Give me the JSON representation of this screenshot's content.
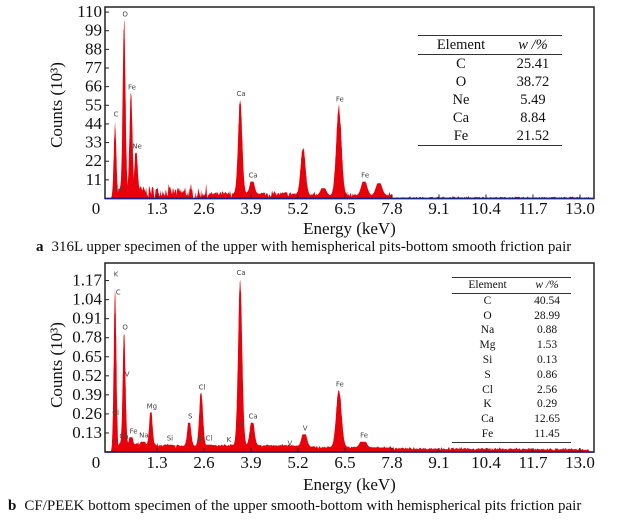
{
  "chart_data": [
    {
      "type": "area",
      "panel_label": "a",
      "caption": "316L upper specimen of the upper with hemispherical pits-bottom smooth friction pair",
      "xlabel": "Energy (keV)",
      "ylabel": "Counts (10³)",
      "xlim": [
        0,
        13.3
      ],
      "ylim": [
        0,
        113
      ],
      "xticks": [
        "0",
        "1.3",
        "2.6",
        "3.9",
        "5.2",
        "6.5",
        "7.8",
        "9.1",
        "10.4",
        "11.7",
        "13.0"
      ],
      "yticks": [
        "11",
        "22",
        "33",
        "44",
        "55",
        "66",
        "77",
        "88",
        "99",
        "110"
      ],
      "color": "#e8000b",
      "peaks": [
        {
          "energy": 0.14,
          "counts": 46,
          "label": "C"
        },
        {
          "energy": 0.39,
          "counts": 105,
          "label": "O"
        },
        {
          "energy": 0.58,
          "counts": 62,
          "label": "Fe"
        },
        {
          "energy": 0.72,
          "counts": 27,
          "label": "Ne"
        },
        {
          "energy": 3.6,
          "counts": 58,
          "label": "Ca"
        },
        {
          "energy": 3.93,
          "counts": 10,
          "label": "Ca"
        },
        {
          "energy": 5.34,
          "counts": 30,
          "label": ""
        },
        {
          "energy": 5.9,
          "counts": 6,
          "label": ""
        },
        {
          "energy": 6.33,
          "counts": 55,
          "label": "Fe"
        },
        {
          "energy": 7.03,
          "counts": 10,
          "label": "Fe"
        },
        {
          "energy": 7.44,
          "counts": 9,
          "label": ""
        }
      ],
      "extra_labels": [
        {
          "energy": 0.18,
          "counts": 3.5,
          "label": "Ca"
        }
      ],
      "table": {
        "headers": [
          "Element",
          "w /%"
        ],
        "rows": [
          [
            "C",
            "25.41"
          ],
          [
            "O",
            "38.72"
          ],
          [
            "Ne",
            "5.49"
          ],
          [
            "Ca",
            "8.84"
          ],
          [
            "Fe",
            "21.52"
          ]
        ]
      }
    },
    {
      "type": "area",
      "panel_label": "b",
      "caption": "CF/PEEK bottom specimen of the upper smooth-bottom with hemispherical pits friction pair",
      "xlabel": "Energy (keV)",
      "ylabel": "Counts (10³)",
      "xlim": [
        0,
        13.3
      ],
      "ylim": [
        0,
        1.29
      ],
      "xticks": [
        "0",
        "1.3",
        "2.6",
        "3.9",
        "5.2",
        "6.5",
        "7.8",
        "9.1",
        "10.4",
        "11.7",
        "13.0"
      ],
      "yticks": [
        "0.13",
        "0.26",
        "0.39",
        "0.52",
        "0.65",
        "0.78",
        "0.91",
        "1.04",
        "1.17"
      ],
      "color": "#e8000b",
      "peaks": [
        {
          "energy": 0.14,
          "counts": 1.17,
          "label": "K"
        },
        {
          "energy": 0.39,
          "counts": 0.81,
          "label": "O"
        },
        {
          "energy": 0.58,
          "counts": 0.1,
          "label": "Fe"
        },
        {
          "energy": 0.91,
          "counts": 0.07,
          "label": "Na"
        },
        {
          "energy": 1.13,
          "counts": 0.27,
          "label": "Mg"
        },
        {
          "energy": 1.63,
          "counts": 0.05,
          "label": "Si"
        },
        {
          "energy": 2.19,
          "counts": 0.2,
          "label": "S"
        },
        {
          "energy": 2.52,
          "counts": 0.4,
          "label": "Cl"
        },
        {
          "energy": 2.71,
          "counts": 0.05,
          "label": "Cl"
        },
        {
          "energy": 3.26,
          "counts": 0.04,
          "label": "K"
        },
        {
          "energy": 3.6,
          "counts": 1.18,
          "label": "Ca"
        },
        {
          "energy": 3.93,
          "counts": 0.2,
          "label": "Ca"
        },
        {
          "energy": 5.37,
          "counts": 0.12,
          "label": "V"
        },
        {
          "energy": 6.33,
          "counts": 0.42,
          "label": "Fe"
        },
        {
          "energy": 7.0,
          "counts": 0.07,
          "label": "Fe"
        },
        {
          "energy": 7.4,
          "counts": 0.03,
          "label": ""
        }
      ],
      "extra_labels": [
        {
          "energy": 0.17,
          "counts": 1.06,
          "label": "C"
        },
        {
          "energy": 0.1,
          "counts": 0.24,
          "label": "Cl"
        },
        {
          "energy": 0.2,
          "counts": 0.08,
          "label": "Ca"
        },
        {
          "energy": 0.1,
          "counts": 0.04,
          "label": "S"
        },
        {
          "energy": 0.42,
          "counts": 0.5,
          "label": "V"
        },
        {
          "energy": 2.42,
          "counts": 0.06,
          "label": "S"
        },
        {
          "energy": 3.58,
          "counts": 0.16,
          "label": "K"
        },
        {
          "energy": 4.92,
          "counts": 0.03,
          "label": "V"
        }
      ],
      "table": {
        "headers": [
          "Element",
          "w /%"
        ],
        "rows": [
          [
            "C",
            "40.54"
          ],
          [
            "O",
            "28.99"
          ],
          [
            "Na",
            "0.88"
          ],
          [
            "Mg",
            "1.53"
          ],
          [
            "Si",
            "0.13"
          ],
          [
            "S",
            "0.86"
          ],
          [
            "Cl",
            "2.56"
          ],
          [
            "K",
            "0.29"
          ],
          [
            "Ca",
            "12.65"
          ],
          [
            "Fe",
            "11.45"
          ]
        ]
      }
    }
  ]
}
